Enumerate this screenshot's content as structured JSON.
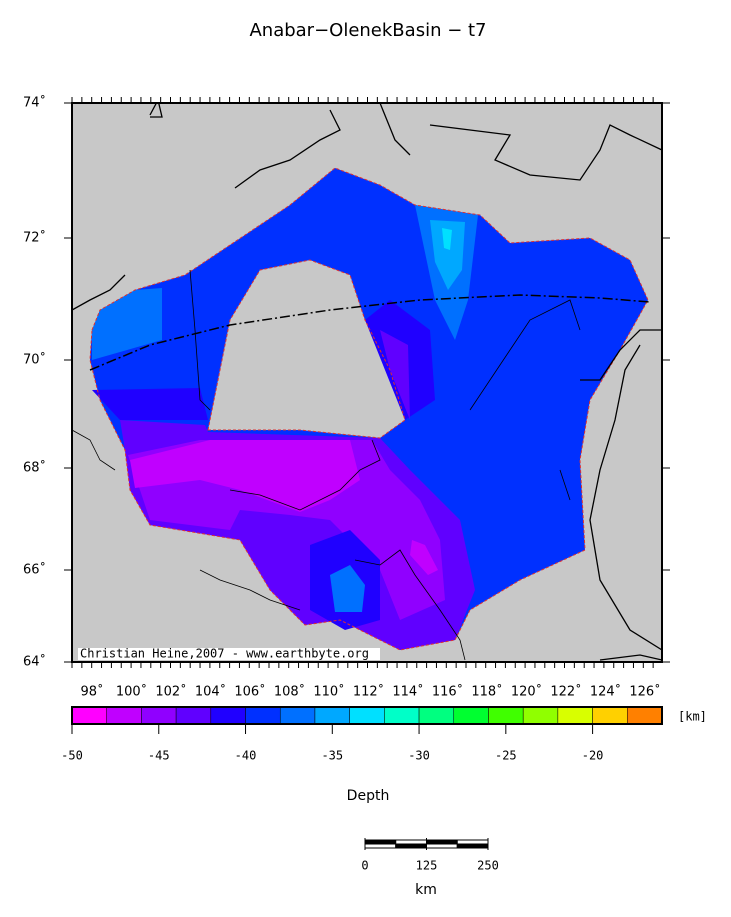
{
  "title": "Anabar−OlenekBasin − t7",
  "lat_labels": [
    "74˚",
    "72˚",
    "70˚",
    "68˚",
    "66˚",
    "64˚"
  ],
  "lon_labels": [
    "98˚",
    "100˚",
    "102˚",
    "104˚",
    "106˚",
    "108˚",
    "110˚",
    "112˚",
    "114˚",
    "116˚",
    "118˚",
    "120˚",
    "122˚",
    "124˚",
    "126˚"
  ],
  "credit": "Christian Heine,2007 - www.earthbyte.org",
  "colorbar": {
    "label": "Depth",
    "unit": "[km]",
    "lim": [
      -50,
      -16
    ],
    "ticks": [
      -50,
      -45,
      -40,
      -35,
      -30,
      -25,
      -20
    ],
    "colors": [
      "#ff00ff",
      "#c000ff",
      "#9000ff",
      "#6000ff",
      "#2000ff",
      "#0030ff",
      "#0070ff",
      "#00a8ff",
      "#00e0ff",
      "#00ffc8",
      "#00ff80",
      "#00ff30",
      "#40ff00",
      "#90ff00",
      "#d8ff00",
      "#ffd000",
      "#ff8000"
    ]
  },
  "scale_bar": {
    "ticks": [
      0,
      125,
      250
    ],
    "unit": "km"
  }
}
